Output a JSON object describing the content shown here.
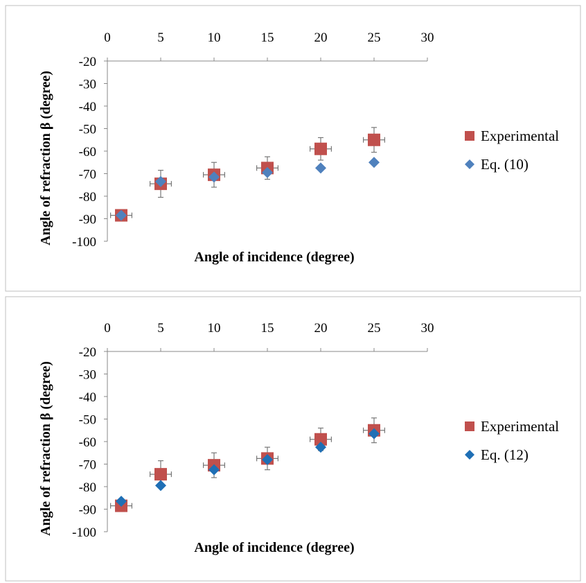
{
  "chart_data": [
    {
      "type": "scatter",
      "title": "",
      "xlabel": "Angle of incidence (degree)",
      "ylabel": "Angle of refraction β (degree)",
      "xlim": [
        0,
        30
      ],
      "ylim": [
        -100,
        -20
      ],
      "x_ticks": [
        "0",
        "5",
        "10",
        "15",
        "20",
        "25",
        "30"
      ],
      "y_ticks": [
        "-20",
        "-30",
        "-40",
        "-50",
        "-60",
        "-70",
        "-80",
        "-90",
        "-100"
      ],
      "x_axis_position": "top",
      "grid": false,
      "legend_position": "right",
      "series": [
        {
          "name": "Experimental",
          "marker": "square",
          "color": "#c0504d",
          "x": [
            1.3,
            5,
            10,
            15,
            20,
            25
          ],
          "y": [
            -88.5,
            -74.5,
            -70.5,
            -67.5,
            -59,
            -55
          ],
          "x_error": [
            1,
            1,
            1,
            1,
            1,
            1
          ],
          "y_error": [
            0,
            6,
            5.5,
            5,
            5,
            5.5
          ]
        },
        {
          "name": "Eq. (10)",
          "marker": "diamond",
          "color": "#4f81bd",
          "x": [
            1.3,
            5,
            10,
            15,
            20,
            25
          ],
          "y": [
            -88.5,
            -73.5,
            -71.5,
            -69.5,
            -67.5,
            -65
          ]
        }
      ]
    },
    {
      "type": "scatter",
      "title": "",
      "xlabel": "Angle of incidence (degree)",
      "ylabel": "Angle of refraction β (degree)",
      "xlim": [
        0,
        30
      ],
      "ylim": [
        -100,
        -20
      ],
      "x_ticks": [
        "0",
        "5",
        "10",
        "15",
        "20",
        "25",
        "30"
      ],
      "y_ticks": [
        "-20",
        "-30",
        "-40",
        "-50",
        "-60",
        "-70",
        "-80",
        "-90",
        "-100"
      ],
      "x_axis_position": "top",
      "grid": false,
      "legend_position": "right",
      "series": [
        {
          "name": "Experimental",
          "marker": "square",
          "color": "#c0504d",
          "x": [
            1.3,
            5,
            10,
            15,
            20,
            25
          ],
          "y": [
            -88.5,
            -74.5,
            -70.5,
            -67.5,
            -59,
            -55
          ],
          "x_error": [
            1,
            1,
            1,
            1,
            1,
            1
          ],
          "y_error": [
            0,
            6,
            5.5,
            5,
            5,
            5.5
          ]
        },
        {
          "name": "Eq. (12)",
          "marker": "diamond",
          "color": "#1f6fb5",
          "x": [
            1.3,
            5,
            10,
            15,
            20,
            25
          ],
          "y": [
            -86.5,
            -79.5,
            -72.5,
            -68,
            -62.5,
            -56.5
          ]
        }
      ]
    }
  ]
}
